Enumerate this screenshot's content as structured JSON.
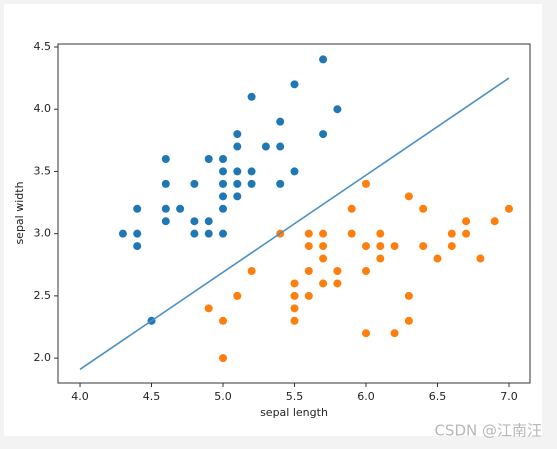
{
  "chart_data": {
    "type": "scatter",
    "x_label": "sepal length",
    "y_label": "sepal width",
    "xlim": [
      3.846,
      7.147
    ],
    "ylim": [
      1.8,
      4.524
    ],
    "xticks": [
      {
        "value": 4,
        "label": "4.0"
      },
      {
        "value": 4.5,
        "label": "4.5"
      },
      {
        "value": 5,
        "label": "5.0"
      },
      {
        "value": 5.5,
        "label": "5.5"
      },
      {
        "value": 6,
        "label": "6.0"
      },
      {
        "value": 6.5,
        "label": "6.5"
      },
      {
        "value": 7,
        "label": "7.0"
      }
    ],
    "yticks": [
      {
        "value": 2,
        "label": "2.0"
      },
      {
        "value": 2.5,
        "label": "2.5"
      },
      {
        "value": 3,
        "label": "3.0"
      },
      {
        "value": 3.5,
        "label": "3.5"
      },
      {
        "value": 4,
        "label": "4.0"
      },
      {
        "value": 4.5,
        "label": "4.5"
      }
    ],
    "grid": false,
    "series": [
      {
        "color": "#1f77b4",
        "style": "markers",
        "x": [
          4.3,
          4.4,
          4.4,
          4.4,
          4.5,
          4.6,
          4.6,
          4.6,
          4.6,
          4.7,
          4.8,
          4.8,
          4.8,
          4.9,
          4.9,
          4.9,
          5.0,
          5.0,
          5.0,
          5.0,
          5.0,
          5.0,
          5.1,
          5.1,
          5.1,
          5.1,
          5.1,
          5.2,
          5.2,
          5.2,
          5.3,
          5.4,
          5.4,
          5.4,
          5.5,
          5.5,
          5.7,
          5.7,
          5.8
        ],
        "values": [
          3.0,
          3.0,
          3.2,
          2.9,
          2.3,
          3.1,
          3.4,
          3.6,
          3.2,
          3.2,
          3.0,
          3.4,
          3.1,
          3.0,
          3.1,
          3.6,
          3.0,
          3.2,
          3.3,
          3.4,
          3.5,
          3.6,
          3.3,
          3.4,
          3.5,
          3.7,
          3.8,
          3.4,
          3.5,
          4.1,
          3.7,
          3.4,
          3.7,
          3.9,
          3.5,
          4.2,
          3.8,
          4.4,
          4.0
        ]
      },
      {
        "color": "#ff7f0e",
        "style": "markers",
        "x": [
          4.9,
          5.0,
          5.0,
          5.1,
          5.2,
          5.4,
          5.5,
          5.5,
          5.5,
          5.5,
          5.6,
          5.6,
          5.6,
          5.6,
          5.7,
          5.7,
          5.7,
          5.7,
          5.8,
          5.8,
          5.9,
          5.9,
          6.0,
          6.0,
          6.0,
          6.0,
          6.1,
          6.1,
          6.1,
          6.2,
          6.2,
          6.3,
          6.3,
          6.3,
          6.4,
          6.4,
          6.5,
          6.6,
          6.6,
          6.7,
          6.7,
          6.8,
          6.9,
          7.0
        ],
        "values": [
          2.4,
          2.0,
          2.3,
          2.5,
          2.7,
          3.0,
          2.3,
          2.4,
          2.5,
          2.6,
          2.5,
          2.7,
          2.9,
          3.0,
          2.6,
          2.8,
          2.9,
          3.0,
          2.6,
          2.7,
          3.0,
          3.2,
          2.2,
          2.7,
          2.9,
          3.4,
          2.8,
          2.9,
          3.0,
          2.2,
          2.9,
          2.3,
          2.5,
          3.3,
          2.9,
          3.2,
          2.8,
          2.9,
          3.0,
          3.0,
          3.1,
          2.8,
          3.1,
          3.2
        ]
      },
      {
        "color": "#4a90c4",
        "style": "line",
        "x": [
          4.0,
          7.0
        ],
        "values": [
          1.91,
          4.25
        ]
      }
    ]
  },
  "watermark": "CSDN @江南汪"
}
